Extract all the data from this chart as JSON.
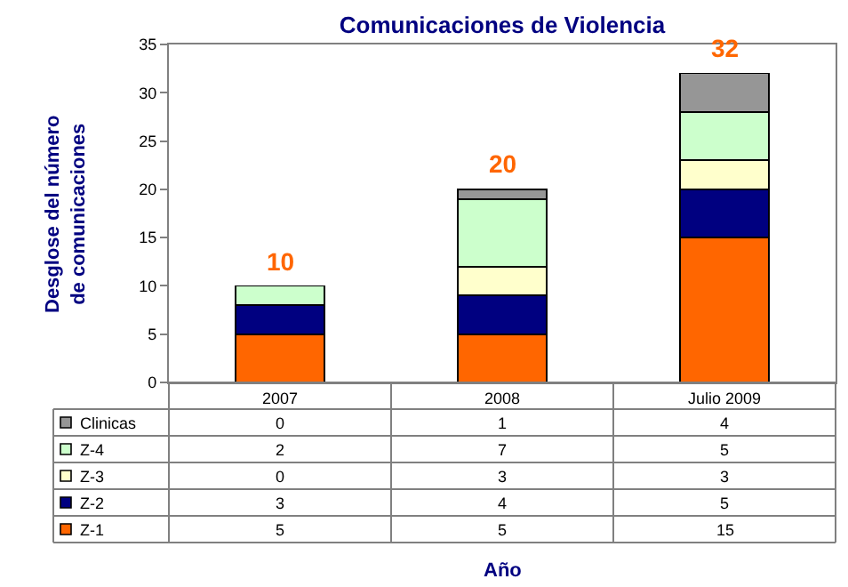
{
  "chart_data": {
    "type": "bar",
    "title": "Comunicaciones de Violencia",
    "annotations": [
      "Año"
    ],
    "ylabel": "Desglose del número de comunicaciones",
    "categories": [
      "2007",
      "2008",
      "Julio 2009"
    ],
    "stacked": true,
    "data_labels": true,
    "series": [
      {
        "name": "Z-1",
        "color": "#ff6600",
        "values": [
          5,
          5,
          15
        ]
      },
      {
        "name": "Z-2",
        "color": "#000080",
        "values": [
          3,
          4,
          5
        ]
      },
      {
        "name": "Z-3",
        "color": "#ffffcc",
        "values": [
          0,
          3,
          3
        ]
      },
      {
        "name": "Z-4",
        "color": "#ccffcc",
        "values": [
          2,
          7,
          5
        ]
      },
      {
        "name": "Clinicas",
        "color": "#969696",
        "values": [
          0,
          1,
          4
        ]
      }
    ],
    "totals": [
      "10",
      "20",
      "32"
    ],
    "ylim": [
      0,
      35
    ],
    "yticks": [
      0,
      5,
      10,
      15,
      20,
      25,
      30,
      35
    ],
    "grid": false,
    "legend": "bottom"
  }
}
